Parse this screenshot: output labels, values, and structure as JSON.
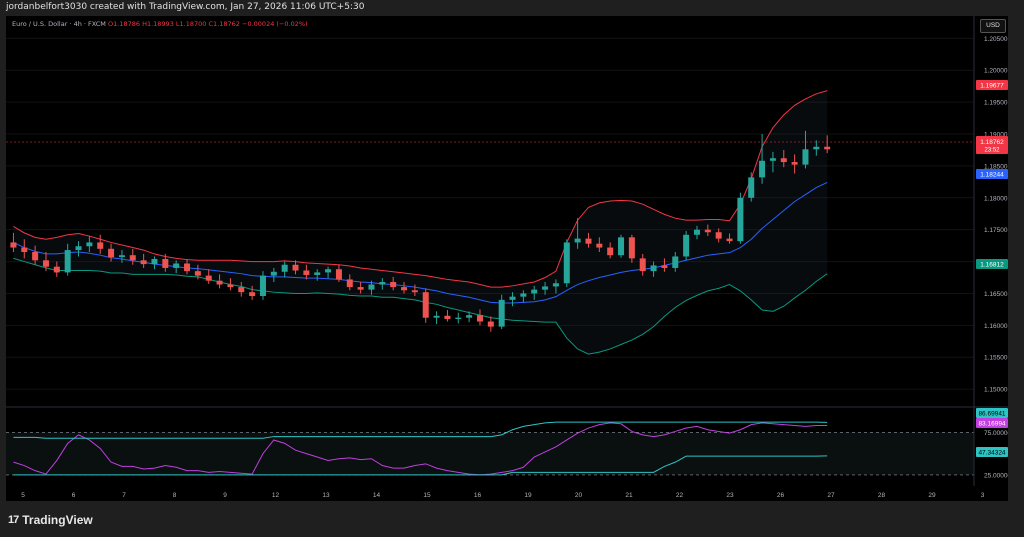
{
  "header": {
    "credit": "jordanbelfort3030 created with TradingView.com, Jan 27, 2026 11:06 UTC+5:30"
  },
  "ticker": {
    "symbol": "Euro / U.S. Dollar · 4h · FXCM",
    "open": "O1.18786",
    "high": "H1.18993",
    "low": "L1.18700",
    "close": "C1.18762",
    "change": "−0.00024 (−0.02%)"
  },
  "currency_button": "USD",
  "brand": {
    "name": "TradingView",
    "mark": "17"
  },
  "price_labels": {
    "upper_band": "1.19677",
    "last_price": "1.18762",
    "countdown": "23:52",
    "basis": "1.18244",
    "lower_band": "1.16812"
  },
  "rsi_labels": {
    "upper": "86.69941",
    "rsi": "83.16994",
    "lower": "47.34324"
  },
  "colors": {
    "up": "#26a69a",
    "down": "#ef5350",
    "basis": "#2962ff",
    "upper_band": "#f23645",
    "lower_band": "#089981",
    "rsi_line": "#c040e0",
    "rsi_band": "#2ec4c4",
    "background": "#000000"
  },
  "chart_data": [
    {
      "type": "candlestick",
      "title": "Euro / U.S. Dollar · 4h · FXCM",
      "ylim": [
        1.1472,
        1.2085
      ],
      "y_ticks": [
        "1.15000",
        "1.15500",
        "1.16000",
        "1.16500",
        "1.17000",
        "1.17500",
        "1.18000",
        "1.18500",
        "1.19000",
        "1.19500",
        "1.20000",
        "1.20500"
      ],
      "x_ticks": [
        "5",
        "6",
        "7",
        "8",
        "9",
        "12",
        "13",
        "14",
        "15",
        "16",
        "19",
        "20",
        "21",
        "22",
        "23",
        "26",
        "27",
        "28",
        "29",
        "3"
      ],
      "candles": [
        {
          "o": 1.173,
          "h": 1.1745,
          "l": 1.1715,
          "c": 1.1722
        },
        {
          "o": 1.1722,
          "h": 1.1735,
          "l": 1.1705,
          "c": 1.1715
        },
        {
          "o": 1.1715,
          "h": 1.1725,
          "l": 1.1695,
          "c": 1.1702
        },
        {
          "o": 1.1702,
          "h": 1.1715,
          "l": 1.1685,
          "c": 1.1692
        },
        {
          "o": 1.1692,
          "h": 1.17,
          "l": 1.1676,
          "c": 1.1683
        },
        {
          "o": 1.1683,
          "h": 1.1728,
          "l": 1.1678,
          "c": 1.1718
        },
        {
          "o": 1.1718,
          "h": 1.1732,
          "l": 1.1708,
          "c": 1.1724
        },
        {
          "o": 1.1724,
          "h": 1.174,
          "l": 1.1715,
          "c": 1.173
        },
        {
          "o": 1.173,
          "h": 1.1742,
          "l": 1.1712,
          "c": 1.172
        },
        {
          "o": 1.172,
          "h": 1.1728,
          "l": 1.17,
          "c": 1.1707
        },
        {
          "o": 1.1707,
          "h": 1.1718,
          "l": 1.1698,
          "c": 1.171
        },
        {
          "o": 1.171,
          "h": 1.172,
          "l": 1.1695,
          "c": 1.1702
        },
        {
          "o": 1.1702,
          "h": 1.1712,
          "l": 1.169,
          "c": 1.1696
        },
        {
          "o": 1.1696,
          "h": 1.1708,
          "l": 1.1688,
          "c": 1.1704
        },
        {
          "o": 1.1704,
          "h": 1.1712,
          "l": 1.1684,
          "c": 1.169
        },
        {
          "o": 1.169,
          "h": 1.1702,
          "l": 1.1682,
          "c": 1.1697
        },
        {
          "o": 1.1697,
          "h": 1.1704,
          "l": 1.168,
          "c": 1.1685
        },
        {
          "o": 1.1685,
          "h": 1.1695,
          "l": 1.1672,
          "c": 1.1678
        },
        {
          "o": 1.1678,
          "h": 1.1688,
          "l": 1.1665,
          "c": 1.167
        },
        {
          "o": 1.167,
          "h": 1.168,
          "l": 1.1658,
          "c": 1.1664
        },
        {
          "o": 1.1664,
          "h": 1.1674,
          "l": 1.1655,
          "c": 1.166
        },
        {
          "o": 1.166,
          "h": 1.1668,
          "l": 1.1645,
          "c": 1.1652
        },
        {
          "o": 1.1652,
          "h": 1.1662,
          "l": 1.164,
          "c": 1.1646
        },
        {
          "o": 1.1646,
          "h": 1.1685,
          "l": 1.164,
          "c": 1.1678
        },
        {
          "o": 1.1678,
          "h": 1.169,
          "l": 1.1668,
          "c": 1.1684
        },
        {
          "o": 1.1684,
          "h": 1.17,
          "l": 1.1675,
          "c": 1.1695
        },
        {
          "o": 1.1695,
          "h": 1.1702,
          "l": 1.168,
          "c": 1.1686
        },
        {
          "o": 1.1686,
          "h": 1.1695,
          "l": 1.1672,
          "c": 1.1679
        },
        {
          "o": 1.1679,
          "h": 1.1688,
          "l": 1.167,
          "c": 1.1683
        },
        {
          "o": 1.1683,
          "h": 1.1692,
          "l": 1.1674,
          "c": 1.1688
        },
        {
          "o": 1.1688,
          "h": 1.1695,
          "l": 1.1668,
          "c": 1.1672
        },
        {
          "o": 1.1672,
          "h": 1.168,
          "l": 1.1655,
          "c": 1.166
        },
        {
          "o": 1.166,
          "h": 1.1668,
          "l": 1.165,
          "c": 1.1656
        },
        {
          "o": 1.1656,
          "h": 1.167,
          "l": 1.1648,
          "c": 1.1664
        },
        {
          "o": 1.1664,
          "h": 1.1674,
          "l": 1.1656,
          "c": 1.1668
        },
        {
          "o": 1.1668,
          "h": 1.1676,
          "l": 1.1655,
          "c": 1.166
        },
        {
          "o": 1.166,
          "h": 1.1668,
          "l": 1.165,
          "c": 1.1655
        },
        {
          "o": 1.1655,
          "h": 1.1664,
          "l": 1.1646,
          "c": 1.1652
        },
        {
          "o": 1.1652,
          "h": 1.1658,
          "l": 1.1604,
          "c": 1.1612
        },
        {
          "o": 1.1612,
          "h": 1.1622,
          "l": 1.1602,
          "c": 1.1615
        },
        {
          "o": 1.1615,
          "h": 1.1624,
          "l": 1.1606,
          "c": 1.161
        },
        {
          "o": 1.161,
          "h": 1.162,
          "l": 1.1603,
          "c": 1.1612
        },
        {
          "o": 1.1612,
          "h": 1.1622,
          "l": 1.1605,
          "c": 1.1616
        },
        {
          "o": 1.1616,
          "h": 1.1625,
          "l": 1.16,
          "c": 1.1606
        },
        {
          "o": 1.1606,
          "h": 1.1614,
          "l": 1.159,
          "c": 1.1598
        },
        {
          "o": 1.1598,
          "h": 1.1648,
          "l": 1.1594,
          "c": 1.164
        },
        {
          "o": 1.164,
          "h": 1.1652,
          "l": 1.163,
          "c": 1.1645
        },
        {
          "o": 1.1645,
          "h": 1.1655,
          "l": 1.1636,
          "c": 1.165
        },
        {
          "o": 1.165,
          "h": 1.1662,
          "l": 1.164,
          "c": 1.1656
        },
        {
          "o": 1.1656,
          "h": 1.1668,
          "l": 1.1648,
          "c": 1.1661
        },
        {
          "o": 1.1661,
          "h": 1.1672,
          "l": 1.165,
          "c": 1.1666
        },
        {
          "o": 1.1666,
          "h": 1.1735,
          "l": 1.166,
          "c": 1.173
        },
        {
          "o": 1.173,
          "h": 1.1768,
          "l": 1.172,
          "c": 1.1736
        },
        {
          "o": 1.1736,
          "h": 1.1745,
          "l": 1.1722,
          "c": 1.1728
        },
        {
          "o": 1.1728,
          "h": 1.1738,
          "l": 1.1715,
          "c": 1.1722
        },
        {
          "o": 1.1722,
          "h": 1.173,
          "l": 1.1705,
          "c": 1.171
        },
        {
          "o": 1.171,
          "h": 1.1742,
          "l": 1.1706,
          "c": 1.1738
        },
        {
          "o": 1.1738,
          "h": 1.1742,
          "l": 1.1698,
          "c": 1.1705
        },
        {
          "o": 1.1705,
          "h": 1.1712,
          "l": 1.1678,
          "c": 1.1685
        },
        {
          "o": 1.1685,
          "h": 1.17,
          "l": 1.1676,
          "c": 1.1694
        },
        {
          "o": 1.1694,
          "h": 1.1705,
          "l": 1.1684,
          "c": 1.169
        },
        {
          "o": 1.169,
          "h": 1.1715,
          "l": 1.1684,
          "c": 1.1708
        },
        {
          "o": 1.1708,
          "h": 1.1748,
          "l": 1.1702,
          "c": 1.1742
        },
        {
          "o": 1.1742,
          "h": 1.1756,
          "l": 1.1735,
          "c": 1.175
        },
        {
          "o": 1.175,
          "h": 1.1758,
          "l": 1.174,
          "c": 1.1746
        },
        {
          "o": 1.1746,
          "h": 1.1752,
          "l": 1.173,
          "c": 1.1736
        },
        {
          "o": 1.1736,
          "h": 1.1744,
          "l": 1.1728,
          "c": 1.1732
        },
        {
          "o": 1.1732,
          "h": 1.1808,
          "l": 1.1728,
          "c": 1.18
        },
        {
          "o": 1.18,
          "h": 1.184,
          "l": 1.1794,
          "c": 1.1832
        },
        {
          "o": 1.1832,
          "h": 1.19,
          "l": 1.1822,
          "c": 1.1858
        },
        {
          "o": 1.1858,
          "h": 1.1872,
          "l": 1.184,
          "c": 1.1862
        },
        {
          "o": 1.1862,
          "h": 1.1875,
          "l": 1.1848,
          "c": 1.1856
        },
        {
          "o": 1.1856,
          "h": 1.1868,
          "l": 1.1838,
          "c": 1.1852
        },
        {
          "o": 1.1852,
          "h": 1.1905,
          "l": 1.1846,
          "c": 1.1876
        },
        {
          "o": 1.1876,
          "h": 1.189,
          "l": 1.1866,
          "c": 1.188
        },
        {
          "o": 1.188,
          "h": 1.1898,
          "l": 1.187,
          "c": 1.1876
        }
      ],
      "bollinger": {
        "upper": [
          1.1755,
          1.1745,
          1.1738,
          1.1735,
          1.1738,
          1.1742,
          1.1744,
          1.174,
          1.1735,
          1.173,
          1.1726,
          1.1722,
          1.1718,
          1.1712,
          1.1708,
          1.1705,
          1.1703,
          1.1702,
          1.1702,
          1.1702,
          1.1702,
          1.1701,
          1.17,
          1.17,
          1.17,
          1.1701,
          1.17,
          1.1698,
          1.1697,
          1.1696,
          1.1695,
          1.1693,
          1.169,
          1.1688,
          1.1686,
          1.1684,
          1.1682,
          1.168,
          1.1678,
          1.1675,
          1.1672,
          1.167,
          1.1668,
          1.1664,
          1.166,
          1.166,
          1.1662,
          1.1665,
          1.1668,
          1.1675,
          1.1685,
          1.173,
          1.1765,
          1.1785,
          1.1792,
          1.1795,
          1.1796,
          1.1795,
          1.179,
          1.1782,
          1.1774,
          1.1768,
          1.1765,
          1.1765,
          1.1766,
          1.1766,
          1.1764,
          1.179,
          1.183,
          1.188,
          1.191,
          1.193,
          1.1945,
          1.1955,
          1.1963,
          1.1968
        ],
        "basis": [
          1.173,
          1.1722,
          1.1716,
          1.1712,
          1.1712,
          1.1714,
          1.1715,
          1.1713,
          1.171,
          1.1706,
          1.1704,
          1.1701,
          1.1699,
          1.1696,
          1.1694,
          1.1692,
          1.169,
          1.1689,
          1.1687,
          1.1685,
          1.1683,
          1.1681,
          1.1678,
          1.1677,
          1.1676,
          1.1676,
          1.1675,
          1.1674,
          1.1674,
          1.1673,
          1.1672,
          1.167,
          1.1668,
          1.1667,
          1.1665,
          1.1664,
          1.1662,
          1.166,
          1.1657,
          1.1654,
          1.165,
          1.1647,
          1.1644,
          1.164,
          1.1636,
          1.1635,
          1.1635,
          1.1636,
          1.1637,
          1.164,
          1.1645,
          1.1655,
          1.1664,
          1.167,
          1.1675,
          1.1679,
          1.1683,
          1.1686,
          1.1688,
          1.169,
          1.1694,
          1.1698,
          1.1702,
          1.1706,
          1.171,
          1.1712,
          1.1714,
          1.1722,
          1.1735,
          1.1752,
          1.1766,
          1.178,
          1.1794,
          1.1805,
          1.1816,
          1.1824
        ],
        "lower": [
          1.1705,
          1.17,
          1.1695,
          1.169,
          1.1686,
          1.1686,
          1.1686,
          1.1686,
          1.1685,
          1.1682,
          1.1682,
          1.168,
          1.168,
          1.168,
          1.168,
          1.1679,
          1.1677,
          1.1676,
          1.1672,
          1.1668,
          1.1664,
          1.1661,
          1.1656,
          1.1654,
          1.1652,
          1.1651,
          1.165,
          1.165,
          1.1651,
          1.165,
          1.1649,
          1.1647,
          1.1646,
          1.1646,
          1.1644,
          1.1644,
          1.1642,
          1.164,
          1.1636,
          1.1633,
          1.1628,
          1.1624,
          1.162,
          1.1616,
          1.1612,
          1.161,
          1.1608,
          1.1607,
          1.1606,
          1.1605,
          1.1605,
          1.158,
          1.1563,
          1.1555,
          1.1558,
          1.1563,
          1.157,
          1.1577,
          1.1586,
          1.1598,
          1.1614,
          1.1628,
          1.1639,
          1.1647,
          1.1654,
          1.1658,
          1.1664,
          1.1654,
          1.164,
          1.1624,
          1.1622,
          1.163,
          1.1643,
          1.1655,
          1.1669,
          1.1681
        ]
      },
      "annotations": {
        "upper_band": "1.19677",
        "last_price": "1.18762",
        "basis": "1.18244",
        "lower_band": "1.16812"
      }
    },
    {
      "type": "line",
      "title": "RSI",
      "ylim": [
        12,
        100
      ],
      "y_ticks": [
        "25.00000",
        "75.00000"
      ],
      "levels": [
        25,
        75
      ],
      "series": [
        {
          "values": [
            40,
            36,
            30,
            26,
            42,
            62,
            72,
            66,
            56,
            40,
            35,
            35,
            32,
            33,
            36,
            34,
            30,
            30,
            28,
            29,
            28,
            27,
            26,
            50,
            66,
            62,
            54,
            50,
            46,
            42,
            44,
            45,
            43,
            44,
            36,
            33,
            33,
            36,
            38,
            33,
            30,
            28,
            26,
            25,
            26,
            28,
            30,
            34,
            46,
            52,
            58,
            66,
            74,
            80,
            84,
            86,
            85,
            76,
            72,
            70,
            72,
            76,
            80,
            82,
            78,
            76,
            74,
            78,
            84,
            86,
            85,
            84,
            83,
            82,
            83,
            83
          ]
        },
        {
          "values": [
            69,
            69,
            69,
            68,
            68,
            68,
            68,
            68,
            68,
            68,
            68,
            68,
            68,
            68,
            68,
            68,
            68,
            68,
            68,
            68,
            68,
            68,
            68,
            68,
            70,
            70,
            70,
            70,
            70,
            70,
            70,
            70,
            70,
            70,
            70,
            70,
            70,
            70,
            70,
            70,
            70,
            70,
            70,
            70,
            70,
            72,
            78,
            82,
            84,
            86,
            87,
            87,
            87,
            87,
            87,
            87,
            87,
            87,
            87,
            87,
            87,
            87,
            87,
            87,
            87,
            87,
            87,
            87,
            87,
            87,
            87,
            87,
            87,
            87,
            87,
            86.7
          ]
        },
        {
          "values": [
            25,
            25,
            25,
            25,
            25,
            25,
            25,
            25,
            25,
            25,
            25,
            25,
            25,
            25,
            25,
            25,
            25,
            25,
            25,
            25,
            25,
            25,
            25,
            25,
            25,
            25,
            25,
            25,
            25,
            25,
            25,
            25,
            25,
            25,
            25,
            25,
            25,
            25,
            25,
            25,
            25,
            25,
            25,
            25,
            25,
            25,
            28,
            28,
            28,
            28,
            28,
            28,
            28,
            28,
            28,
            28,
            28,
            28,
            28,
            28,
            35,
            40,
            47,
            47,
            47,
            47,
            47,
            47,
            47,
            47,
            47,
            47,
            47,
            47,
            47,
            47.3
          ]
        }
      ],
      "annotations": {
        "upper": "86.69941",
        "rsi": "83.16994",
        "lower": "47.34324"
      }
    }
  ]
}
